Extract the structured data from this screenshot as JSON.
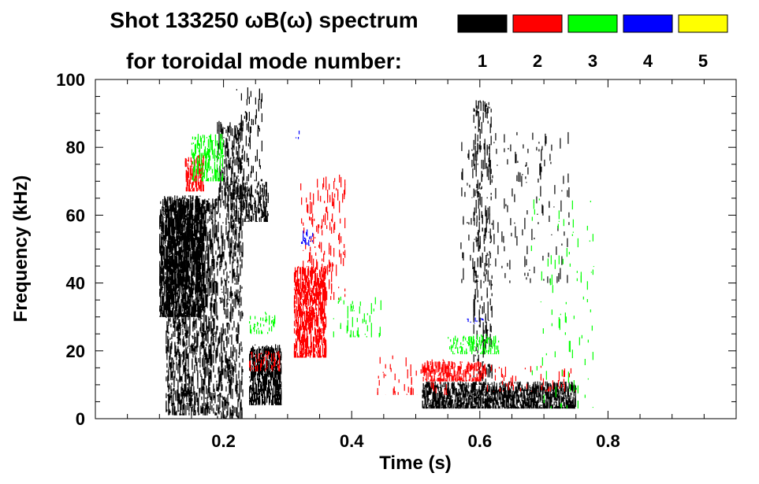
{
  "chart_data": {
    "type": "heatmap",
    "title_line1": "Shot 133250 ωB(ω) spectrum",
    "title_line2": "for toroidal mode number:",
    "xlabel": "Time (s)",
    "ylabel": "Frequency (kHz)",
    "xlim": [
      0.0,
      1.0
    ],
    "ylim": [
      0,
      100
    ],
    "x_major_ticks": [
      0.2,
      0.4,
      0.6,
      0.8
    ],
    "x_tick_labels": [
      "0.2",
      "0.4",
      "0.6",
      "0.8"
    ],
    "y_major_ticks": [
      0,
      20,
      40,
      60,
      80,
      100
    ],
    "y_tick_labels": [
      "0",
      "20",
      "40",
      "60",
      "80",
      "100"
    ],
    "legend": [
      {
        "mode": "1",
        "color": "#000000"
      },
      {
        "mode": "2",
        "color": "#ff0000"
      },
      {
        "mode": "3",
        "color": "#00ff00"
      },
      {
        "mode": "4",
        "color": "#0000ff"
      },
      {
        "mode": "5",
        "color": "#ffff00"
      }
    ],
    "series": [
      {
        "mode": 1,
        "name": "n=1",
        "color": "#000000",
        "regions": [
          {
            "t": [
              0.1,
              0.17
            ],
            "f": [
              30,
              66
            ],
            "density": 0.85
          },
          {
            "t": [
              0.11,
              0.19
            ],
            "f": [
              1,
              65
            ],
            "density": 0.45
          },
          {
            "t": [
              0.19,
              0.23
            ],
            "f": [
              0,
              88
            ],
            "density": 0.3
          },
          {
            "t": [
              0.21,
              0.27
            ],
            "f": [
              58,
              70
            ],
            "density": 0.35
          },
          {
            "t": [
              0.24,
              0.29
            ],
            "f": [
              4,
              22
            ],
            "density": 0.85
          },
          {
            "t": [
              0.22,
              0.26
            ],
            "f": [
              70,
              98
            ],
            "density": 0.12
          },
          {
            "t": [
              0.51,
              0.75
            ],
            "f": [
              3,
              11
            ],
            "density": 0.9
          },
          {
            "t": [
              0.59,
              0.62
            ],
            "f": [
              10,
              94
            ],
            "density": 0.2
          },
          {
            "t": [
              0.57,
              0.74
            ],
            "f": [
              40,
              85
            ],
            "density": 0.04
          }
        ]
      },
      {
        "mode": 2,
        "name": "n=2",
        "color": "#ff0000",
        "regions": [
          {
            "t": [
              0.14,
              0.17
            ],
            "f": [
              67,
              78
            ],
            "density": 0.6
          },
          {
            "t": [
              0.31,
              0.36
            ],
            "f": [
              18,
              45
            ],
            "density": 0.75
          },
          {
            "t": [
              0.32,
              0.39
            ],
            "f": [
              35,
              72
            ],
            "density": 0.1
          },
          {
            "t": [
              0.24,
              0.29
            ],
            "f": [
              14,
              20
            ],
            "density": 0.4
          },
          {
            "t": [
              0.51,
              0.61
            ],
            "f": [
              11,
              17
            ],
            "density": 0.8
          },
          {
            "t": [
              0.44,
              0.55
            ],
            "f": [
              7,
              19
            ],
            "density": 0.06
          },
          {
            "t": [
              0.61,
              0.75
            ],
            "f": [
              8,
              16
            ],
            "density": 0.08
          }
        ]
      },
      {
        "mode": 3,
        "name": "n=3",
        "color": "#00ff00",
        "regions": [
          {
            "t": [
              0.15,
              0.2
            ],
            "f": [
              70,
              84
            ],
            "density": 0.4
          },
          {
            "t": [
              0.55,
              0.63
            ],
            "f": [
              19,
              25
            ],
            "density": 0.35
          },
          {
            "t": [
              0.37,
              0.45
            ],
            "f": [
              24,
              36
            ],
            "density": 0.08
          },
          {
            "t": [
              0.24,
              0.28
            ],
            "f": [
              25,
              32
            ],
            "density": 0.2
          },
          {
            "t": [
              0.68,
              0.78
            ],
            "f": [
              3,
              66
            ],
            "density": 0.02
          }
        ]
      },
      {
        "mode": 4,
        "name": "n=4",
        "color": "#0000ff",
        "regions": [
          {
            "t": [
              0.32,
              0.34
            ],
            "f": [
              51,
              56
            ],
            "density": 0.5
          },
          {
            "t": [
              0.58,
              0.61
            ],
            "f": [
              28,
              30
            ],
            "density": 0.4
          },
          {
            "t": [
              0.31,
              0.32
            ],
            "f": [
              82,
              85
            ],
            "density": 0.2
          }
        ]
      },
      {
        "mode": 5,
        "name": "n=5",
        "color": "#ffff00",
        "regions": []
      }
    ]
  }
}
